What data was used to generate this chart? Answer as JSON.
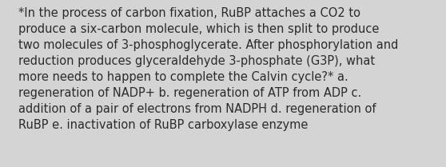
{
  "background_color": "#d4d4d4",
  "text_color": "#2b2b2b",
  "font_size": 10.5,
  "font_family": "DejaVu Sans",
  "lines": [
    "*In the process of carbon fixation, RuBP attaches a CO2 to",
    "produce a six-carbon molecule, which is then split to produce",
    "two molecules of 3-phosphoglycerate. After phosphorylation and",
    "reduction produces glyceraldehyde 3-phosphate (G3P), what",
    "more needs to happen to complete the Calvin cycle?* a.",
    "regeneration of NADP+ b. regeneration of ATP from ADP c.",
    "addition of a pair of electrons from NADPH d. regeneration of",
    "RuBP e. inactivation of RuBP carboxylase enzyme"
  ],
  "fig_width": 5.58,
  "fig_height": 2.09,
  "dpi": 100
}
